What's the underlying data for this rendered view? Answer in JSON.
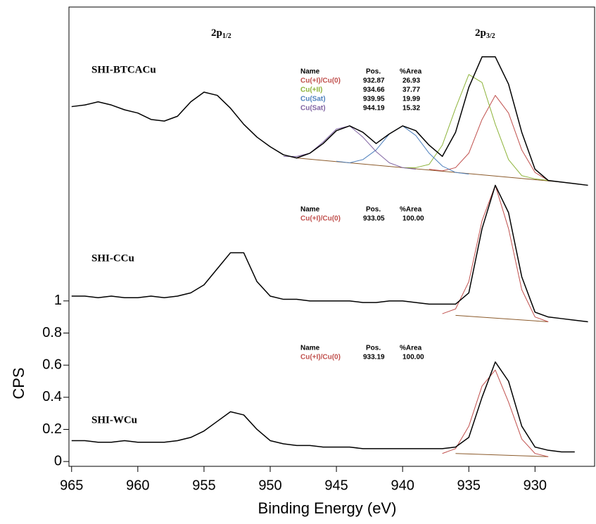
{
  "chart_data": {
    "type": "line",
    "xlabel": "Binding Energy (eV)",
    "ylabel": "CPS",
    "xlim": [
      965.2,
      925.5
    ],
    "ylim": [
      -0.03,
      2.83
    ],
    "xticks": [
      965,
      960,
      955,
      950,
      945,
      940,
      935,
      930
    ],
    "yticks": [
      0,
      0.2,
      0.4,
      0.6,
      0.8,
      1
    ],
    "peak_labels": [
      {
        "main": "2p",
        "sub": "1/2"
      },
      {
        "main": "2p",
        "sub": "3/2"
      }
    ],
    "table_header": [
      "Name",
      "Pos.",
      "%Area"
    ],
    "spectra": [
      {
        "name": "SHI-BTCACu",
        "color": "#000000",
        "x": [
          965,
          964,
          963,
          962,
          961,
          960,
          959,
          958,
          957,
          956,
          955,
          954,
          953,
          952,
          951,
          950,
          949,
          948,
          947,
          946,
          945,
          944,
          943,
          942,
          941,
          940,
          939,
          938,
          937,
          936,
          935,
          934,
          933,
          932,
          931,
          930,
          929,
          928,
          927,
          926
        ],
        "values": [
          2.21,
          2.22,
          2.24,
          2.22,
          2.19,
          2.17,
          2.13,
          2.12,
          2.15,
          2.24,
          2.3,
          2.28,
          2.2,
          2.1,
          2.02,
          1.96,
          1.91,
          1.89,
          1.92,
          1.98,
          2.06,
          2.09,
          2.05,
          1.98,
          2.04,
          2.09,
          2.06,
          1.97,
          1.9,
          2.05,
          2.33,
          2.52,
          2.52,
          2.35,
          2.05,
          1.82,
          1.75,
          1.74,
          1.73,
          1.72
        ],
        "background": {
          "color": "#8b5a2b",
          "x": [
            948,
            928
          ],
          "values": [
            1.89,
            1.74
          ]
        },
        "fits": [
          {
            "name": "Cu(+I)/Cu(0)",
            "pos": "932.87",
            "area": "26.93",
            "color": "#c0504d",
            "x": [
              938,
              937,
              936,
              935,
              934,
              933,
              932,
              931,
              930,
              929,
              928
            ],
            "values": [
              1.82,
              1.81,
              1.83,
              1.92,
              2.13,
              2.28,
              2.17,
              1.94,
              1.8,
              1.75,
              1.74
            ]
          },
          {
            "name": "Cu(+II)",
            "pos": "934.66",
            "area": "37.77",
            "color": "#8db33a",
            "x": [
              940,
              939,
              938,
              937,
              936,
              935,
              934,
              933,
              932,
              931,
              930,
              929
            ],
            "values": [
              1.83,
              1.83,
              1.85,
              1.97,
              2.2,
              2.41,
              2.36,
              2.1,
              1.88,
              1.78,
              1.76,
              1.75
            ]
          },
          {
            "name": "Cu(Sat)",
            "pos": "939.95",
            "area": "19.99",
            "color": "#4f81bd",
            "x": [
              945,
              944,
              943,
              942,
              941,
              940,
              939,
              938,
              937,
              936,
              935
            ],
            "values": [
              1.87,
              1.86,
              1.88,
              1.94,
              2.04,
              2.09,
              2.03,
              1.92,
              1.84,
              1.8,
              1.79
            ]
          },
          {
            "name": "Cu(Sat)",
            "pos": "944.19",
            "area": "15.32",
            "color": "#8064a2",
            "x": [
              949,
              948,
              947,
              946,
              945,
              944,
              943,
              942,
              941,
              940,
              939
            ],
            "values": [
              1.9,
              1.9,
              1.92,
              1.99,
              2.07,
              2.09,
              2.02,
              1.93,
              1.86,
              1.83,
              1.82
            ]
          }
        ]
      },
      {
        "name": "SHI-CCu",
        "color": "#000000",
        "x": [
          965,
          964,
          963,
          962,
          961,
          960,
          959,
          958,
          957,
          956,
          955,
          954,
          953,
          952,
          951,
          950,
          949,
          948,
          947,
          946,
          945,
          944,
          943,
          942,
          941,
          940,
          939,
          938,
          937,
          936,
          935,
          934,
          933,
          932,
          931,
          930,
          929,
          928,
          927,
          926
        ],
        "values": [
          1.03,
          1.03,
          1.02,
          1.03,
          1.02,
          1.02,
          1.03,
          1.02,
          1.03,
          1.05,
          1.1,
          1.2,
          1.3,
          1.3,
          1.12,
          1.03,
          1.01,
          1.01,
          1.0,
          1.0,
          1.0,
          1.0,
          0.99,
          0.99,
          1.0,
          1.0,
          0.99,
          0.98,
          0.98,
          0.98,
          1.05,
          1.45,
          1.72,
          1.55,
          1.15,
          0.93,
          0.9,
          0.89,
          0.88,
          0.87
        ],
        "background": {
          "color": "#8b5a2b",
          "x": [
            936,
            929
          ],
          "values": [
            0.91,
            0.87
          ]
        },
        "fits": [
          {
            "name": "Cu(+I)/Cu(0)",
            "pos": "933.05",
            "area": "100.00",
            "color": "#c0504d",
            "x": [
              937,
              936,
              935,
              934,
              933,
              932,
              931,
              930,
              929
            ],
            "values": [
              0.92,
              0.95,
              1.12,
              1.5,
              1.72,
              1.45,
              1.07,
              0.9,
              0.87
            ]
          }
        ]
      },
      {
        "name": "SHI-WCu",
        "color": "#000000",
        "x": [
          965,
          964,
          963,
          962,
          961,
          960,
          959,
          958,
          957,
          956,
          955,
          954,
          953,
          952,
          951,
          950,
          949,
          948,
          947,
          946,
          945,
          944,
          943,
          942,
          941,
          940,
          939,
          938,
          937,
          936,
          935,
          934,
          933,
          932,
          931,
          930,
          929,
          928,
          927
        ],
        "values": [
          0.13,
          0.13,
          0.12,
          0.12,
          0.13,
          0.12,
          0.12,
          0.12,
          0.13,
          0.15,
          0.19,
          0.25,
          0.31,
          0.29,
          0.2,
          0.13,
          0.11,
          0.1,
          0.1,
          0.09,
          0.09,
          0.09,
          0.08,
          0.08,
          0.08,
          0.08,
          0.08,
          0.08,
          0.08,
          0.09,
          0.15,
          0.4,
          0.62,
          0.5,
          0.22,
          0.09,
          0.07,
          0.06,
          0.06
        ],
        "background": {
          "color": "#8b5a2b",
          "x": [
            936,
            929
          ],
          "values": [
            0.05,
            0.03
          ]
        },
        "fits": [
          {
            "name": "Cu(+I)/Cu(0)",
            "pos": "933.19",
            "area": "100.00",
            "color": "#c0504d",
            "x": [
              937,
              936,
              935,
              934,
              933,
              932,
              931,
              930,
              929
            ],
            "values": [
              0.05,
              0.08,
              0.22,
              0.47,
              0.57,
              0.37,
              0.14,
              0.05,
              0.03
            ]
          }
        ]
      }
    ]
  }
}
